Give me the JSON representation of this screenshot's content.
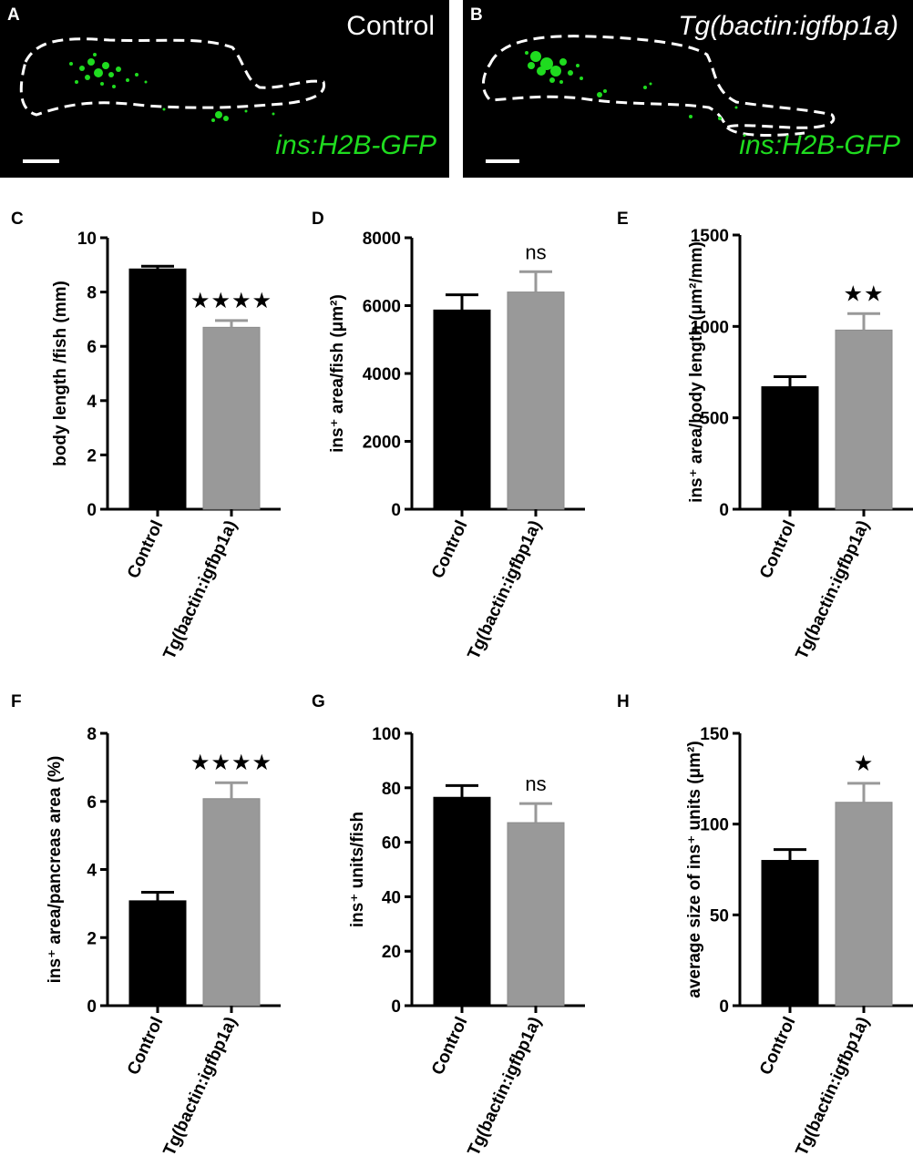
{
  "micrographs": [
    {
      "letter": "A",
      "title": "Control",
      "gene_label": "ins:H2B-GFP",
      "title_italic": false
    },
    {
      "letter": "B",
      "title": "Tg(bactin:igfbp1a)",
      "gene_label": "ins:H2B-GFP",
      "title_italic": true
    }
  ],
  "colors": {
    "control_bar": "#000000",
    "transgenic_bar": "#999999",
    "gfp_green": "#1fdc1f",
    "axis": "#000000"
  },
  "chart_data": [
    {
      "letter": "C",
      "type": "bar",
      "ylabel": "body length /fish (mm)",
      "categories": [
        "Control",
        "Tg(bactin:igfbp1a)"
      ],
      "values": [
        8.85,
        6.7
      ],
      "errors": [
        0.1,
        0.25
      ],
      "ylim": [
        0,
        10
      ],
      "yticks": [
        0,
        2,
        4,
        6,
        8,
        10
      ],
      "significance": [
        "",
        "★★★★"
      ]
    },
    {
      "letter": "D",
      "type": "bar",
      "ylabel": "ins⁺ area/fish (μm²)",
      "categories": [
        "Control",
        "Tg(bactin:igfbp1a)"
      ],
      "values": [
        5870,
        6400
      ],
      "errors": [
        450,
        600
      ],
      "ylim": [
        0,
        8000
      ],
      "yticks": [
        0,
        2000,
        4000,
        6000,
        8000
      ],
      "significance": [
        "",
        "ns"
      ]
    },
    {
      "letter": "E",
      "type": "bar",
      "ylabel": "ins⁺ area/body length (μm²/mm)",
      "categories": [
        "Control",
        "Tg(bactin:igfbp1a)"
      ],
      "values": [
        670,
        980
      ],
      "errors": [
        55,
        90
      ],
      "ylim": [
        0,
        1500
      ],
      "yticks": [
        0,
        500,
        1000,
        1500
      ],
      "significance": [
        "",
        "★★"
      ]
    },
    {
      "letter": "F",
      "type": "bar",
      "ylabel": "ins⁺ area/pancreas area (%)",
      "categories": [
        "Control",
        "Tg(bactin:igfbp1a)"
      ],
      "values": [
        3.08,
        6.08
      ],
      "errors": [
        0.25,
        0.47
      ],
      "ylim": [
        0,
        8
      ],
      "yticks": [
        0,
        2,
        4,
        6,
        8
      ],
      "significance": [
        "",
        "★★★★"
      ]
    },
    {
      "letter": "G",
      "type": "bar",
      "ylabel": "ins⁺ units/fish",
      "categories": [
        "Control",
        "Tg(bactin:igfbp1a)"
      ],
      "values": [
        76.5,
        67.2
      ],
      "errors": [
        4.3,
        7.0
      ],
      "ylim": [
        0,
        100
      ],
      "yticks": [
        0,
        20,
        40,
        60,
        80,
        100
      ],
      "significance": [
        "",
        "ns"
      ]
    },
    {
      "letter": "H",
      "type": "bar",
      "ylabel": "average size of ins⁺ units (μm²)",
      "categories": [
        "Control",
        "Tg(bactin:igfbp1a)"
      ],
      "values": [
        80,
        112
      ],
      "errors": [
        6,
        10.5
      ],
      "ylim": [
        0,
        150
      ],
      "yticks": [
        0,
        50,
        100,
        150
      ],
      "significance": [
        "",
        "★"
      ]
    }
  ]
}
